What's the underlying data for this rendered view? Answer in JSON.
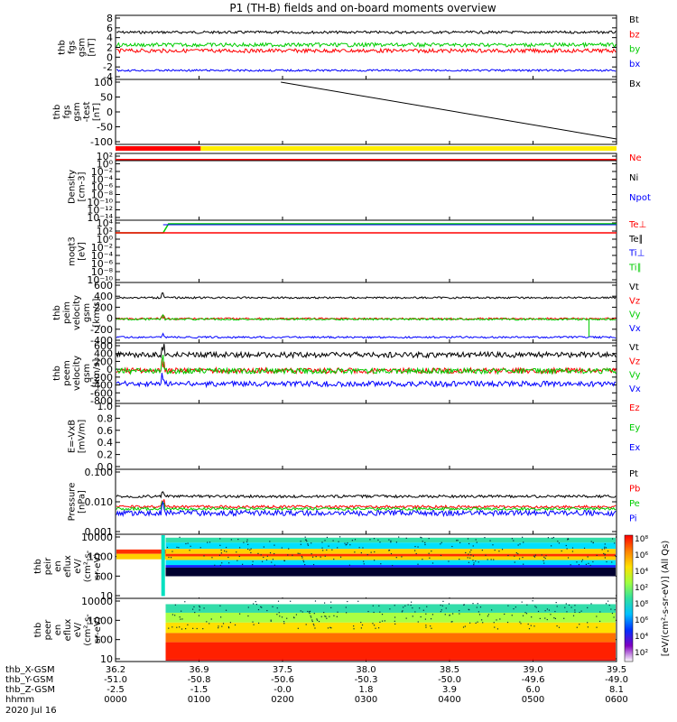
{
  "title": "P1 (TH-B) fields and on-board moments overview",
  "chart_data": [
    {
      "type": "line",
      "id": "fgs",
      "ylabel": [
        "thb",
        "fgs",
        "gsm",
        "[nT]"
      ],
      "yticks": [
        "8",
        "6",
        "4",
        "2",
        "0",
        "-2",
        "-4"
      ],
      "ylim": [
        -5,
        9
      ],
      "series": [
        {
          "name": "Bt",
          "color": "#000000",
          "level": 5.6,
          "noise": 0.4
        },
        {
          "name": "bz",
          "color": "#ff0000",
          "level": 1.2,
          "noise": 0.6
        },
        {
          "name": "by",
          "color": "#00cc00",
          "level": 2.6,
          "noise": 0.6
        },
        {
          "name": "bx",
          "color": "#0000ff",
          "level": -3.5,
          "noise": 0.3
        }
      ]
    },
    {
      "type": "line",
      "id": "fgs_test",
      "ylabel": [
        "thb",
        "fgs",
        "gsm",
        "-test",
        "[nT]"
      ],
      "yticks": [
        "100",
        "50",
        "0",
        "-50",
        "-100"
      ],
      "ylim": [
        -110,
        110
      ],
      "series": [
        {
          "name": "Bx",
          "color": "#000000",
          "from": [
            0.33,
            110
          ],
          "to": [
            1.0,
            -100
          ]
        }
      ],
      "flag_bars": [
        {
          "color": "#ff0000",
          "range": [
            0.0,
            0.17
          ]
        },
        {
          "color": "#ffee00",
          "range": [
            0.17,
            1.0
          ]
        }
      ]
    },
    {
      "type": "line",
      "id": "density",
      "ylabel": [
        "Density",
        "[cm-3]"
      ],
      "yticks": [
        "10²",
        "10⁰",
        "10⁻²",
        "10⁻⁴",
        "10⁻⁶",
        "10⁻⁸",
        "10⁻¹⁰",
        "10⁻¹²",
        "10⁻¹⁴"
      ],
      "series": [
        {
          "name": "Ne",
          "color": "#ff0000"
        },
        {
          "name": "Ni",
          "color": "#000000"
        },
        {
          "name": "Npot",
          "color": "#0000ff"
        }
      ]
    },
    {
      "type": "line",
      "id": "temperature",
      "ylabel": [
        "moqt3",
        "[eV]"
      ],
      "yticks": [
        "10⁴",
        "10²",
        "10⁰",
        "10⁻²",
        "10⁻⁴",
        "10⁻⁶",
        "10⁻⁸",
        "10⁻¹⁰"
      ],
      "series": [
        {
          "name": "Te⊥",
          "color": "#ff0000"
        },
        {
          "name": "Te∥",
          "color": "#000000"
        },
        {
          "name": "Ti⊥",
          "color": "#0000ff"
        },
        {
          "name": "Ti∥",
          "color": "#00cc00"
        }
      ]
    },
    {
      "type": "line",
      "id": "peim_velocity",
      "ylabel": [
        "thb",
        "peim",
        "velocity",
        "gsm",
        "[km/s]"
      ],
      "yticks": [
        "600",
        "400",
        "200",
        "0",
        "-200",
        "-400"
      ],
      "ylim": [
        -450,
        650
      ],
      "series": [
        {
          "name": "Vt",
          "color": "#000000",
          "level": 400
        },
        {
          "name": "Vz",
          "color": "#ff0000",
          "level": -20
        },
        {
          "name": "Vy",
          "color": "#00cc00",
          "level": -30
        },
        {
          "name": "Vx",
          "color": "#0000ff",
          "level": -390
        }
      ]
    },
    {
      "type": "line",
      "id": "peem_velocity",
      "ylabel": [
        "thb",
        "peem",
        "velocity",
        "gsm",
        "[km/s]"
      ],
      "yticks": [
        "600",
        "400",
        "200",
        "0",
        "-200",
        "-400",
        "-600",
        "-800"
      ],
      "ylim": [
        -850,
        650
      ],
      "series": [
        {
          "name": "Vt",
          "color": "#000000",
          "level": 400
        },
        {
          "name": "Vz",
          "color": "#ff0000",
          "level": -30
        },
        {
          "name": "Vy",
          "color": "#00cc00",
          "level": -40
        },
        {
          "name": "Vx",
          "color": "#0000ff",
          "level": -390
        }
      ]
    },
    {
      "type": "line",
      "id": "efield",
      "ylabel": [
        "E=-VxB",
        "[mV/m]"
      ],
      "yticks": [
        "1.0",
        "0.8",
        "0.6",
        "0.4",
        "0.2",
        "0.0"
      ],
      "ylim": [
        0,
        1
      ],
      "series": [
        {
          "name": "Ez",
          "color": "#ff0000"
        },
        {
          "name": "Ey",
          "color": "#00cc00"
        },
        {
          "name": "Ex",
          "color": "#0000ff"
        }
      ]
    },
    {
      "type": "line",
      "id": "pressure",
      "ylabel": [
        "Pressure",
        "[nPa]"
      ],
      "yticks": [
        "0.100",
        "0.010",
        "0.001"
      ],
      "scale": "log",
      "series": [
        {
          "name": "Pt",
          "color": "#000000",
          "level": 0.03
        },
        {
          "name": "Pb",
          "color": "#ff0000",
          "level": 0.011
        },
        {
          "name": "Pe",
          "color": "#00cc00",
          "level": 0.009
        },
        {
          "name": "Pi",
          "color": "#0000ff",
          "level": 0.006
        }
      ]
    },
    {
      "type": "heatmap",
      "id": "peir",
      "ylabel": [
        "thb",
        "peir",
        "en",
        "eflux",
        "eV/",
        "(cm²-s-",
        "sr-eV)"
      ],
      "yticks": [
        "10000",
        "1000",
        "100",
        "10"
      ]
    },
    {
      "type": "heatmap",
      "id": "peer",
      "ylabel": [
        "thb",
        "peer",
        "en",
        "eflux",
        "eV/",
        "(cm²-s-",
        "sr-eV)"
      ],
      "yticks": [
        "10000",
        "1000",
        "100",
        "10"
      ]
    }
  ],
  "colorbar": {
    "label": "[eV/(cm²-s-sr-eV)] (All Qs)",
    "ticks": [
      "10⁸",
      "10⁶",
      "10⁴",
      "10²",
      "10⁸",
      "10⁶",
      "10⁴",
      "10²"
    ]
  },
  "xaxis": {
    "rows": [
      {
        "label": "thb_X-GSM",
        "values": [
          "36.2",
          "36.9",
          "37.5",
          "38.0",
          "38.5",
          "39.0",
          "39.5"
        ]
      },
      {
        "label": "thb_Y-GSM",
        "values": [
          "-51.0",
          "-50.8",
          "-50.6",
          "-50.3",
          "-50.0",
          "-49.6",
          "-49.0"
        ]
      },
      {
        "label": "thb_Z-GSM",
        "values": [
          "-2.5",
          "-1.5",
          "-0.0",
          "1.8",
          "3.9",
          "6.0",
          "8.1"
        ]
      },
      {
        "label": "hhmm",
        "values": [
          "0000",
          "0100",
          "0200",
          "0300",
          "0400",
          "0500",
          "0600"
        ]
      }
    ],
    "date": "2020 Jul 16"
  }
}
